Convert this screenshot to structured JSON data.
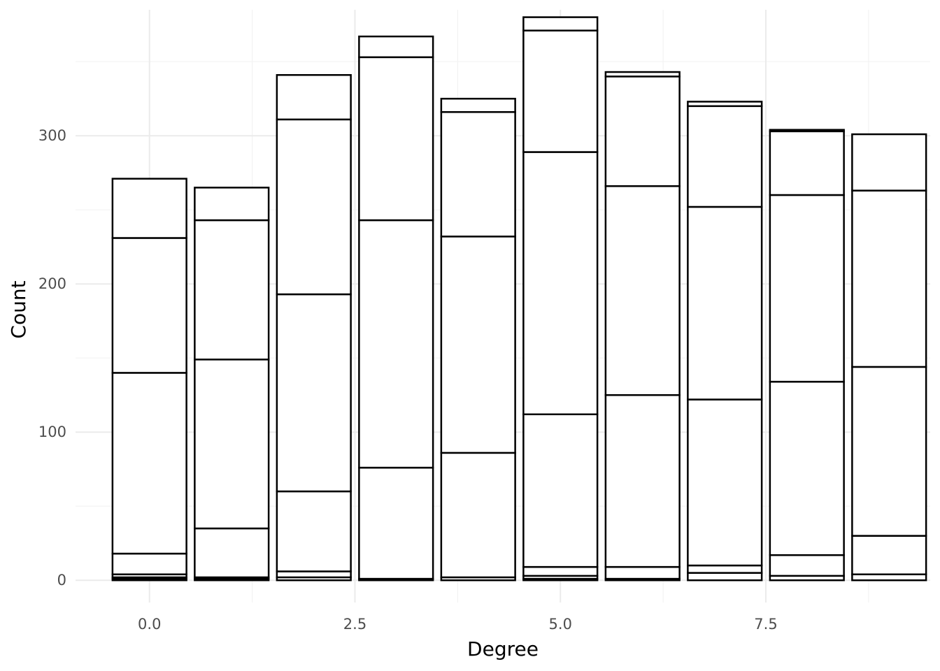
{
  "chart_data": {
    "type": "bar",
    "stacked": true,
    "title": "",
    "xlabel": "Degree",
    "ylabel": "Count",
    "xlim": [
      -0.9,
      9.5
    ],
    "ylim": [
      -15,
      385
    ],
    "x_ticks": [
      0.0,
      2.5,
      5.0,
      7.5
    ],
    "x_tick_labels": [
      "0.0",
      "2.5",
      "5.0",
      "7.5"
    ],
    "y_ticks": [
      0,
      100,
      200,
      300
    ],
    "y_tick_labels": [
      "0",
      "100",
      "200",
      "300"
    ],
    "grid": true,
    "legend": "none",
    "bar_fill": "#ffffff",
    "bar_outline": "#000000",
    "bars": [
      {
        "x": 0,
        "stack_tops": [
          1,
          2,
          4,
          18,
          140,
          231,
          271
        ]
      },
      {
        "x": 1,
        "stack_tops": [
          1,
          2,
          35,
          149,
          243,
          265
        ]
      },
      {
        "x": 2,
        "stack_tops": [
          2,
          6,
          60,
          193,
          311,
          341
        ]
      },
      {
        "x": 3,
        "stack_tops": [
          1,
          76,
          243,
          353,
          367
        ]
      },
      {
        "x": 4,
        "stack_tops": [
          2,
          86,
          232,
          316,
          325
        ]
      },
      {
        "x": 5,
        "stack_tops": [
          1,
          3,
          9,
          112,
          289,
          371,
          380
        ]
      },
      {
        "x": 6,
        "stack_tops": [
          1,
          9,
          125,
          266,
          340,
          343
        ]
      },
      {
        "x": 7,
        "stack_tops": [
          5,
          10,
          122,
          252,
          320,
          323
        ]
      },
      {
        "x": 8,
        "stack_tops": [
          3,
          17,
          134,
          260,
          303,
          304
        ]
      },
      {
        "x": 9,
        "stack_tops": [
          4,
          30,
          144,
          263,
          301
        ]
      }
    ]
  }
}
